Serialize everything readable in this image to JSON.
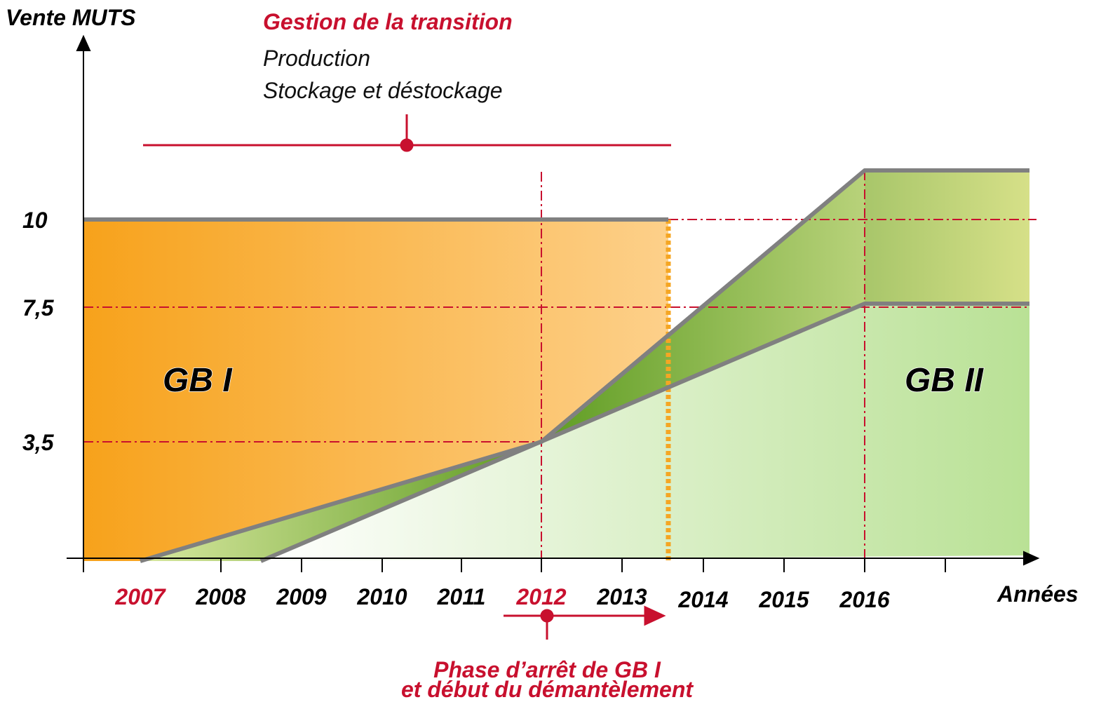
{
  "y_axis": {
    "label": "Vente MUTS",
    "ticks": [
      "10",
      "7,5",
      "3,5"
    ]
  },
  "x_axis": {
    "label": "Années",
    "ticks": [
      "2007",
      "2008",
      "2009",
      "2010",
      "2011",
      "2012",
      "2013",
      "2014",
      "2015",
      "2016"
    ]
  },
  "transition": {
    "title": "Gestion de la transition",
    "items": [
      "Production",
      "Stockage et déstockage"
    ]
  },
  "phase": {
    "lines": [
      "Phase d’arrêt de GB I",
      "et début du démantèlement"
    ]
  },
  "regions": [
    "GB I",
    "GB II"
  ]
}
